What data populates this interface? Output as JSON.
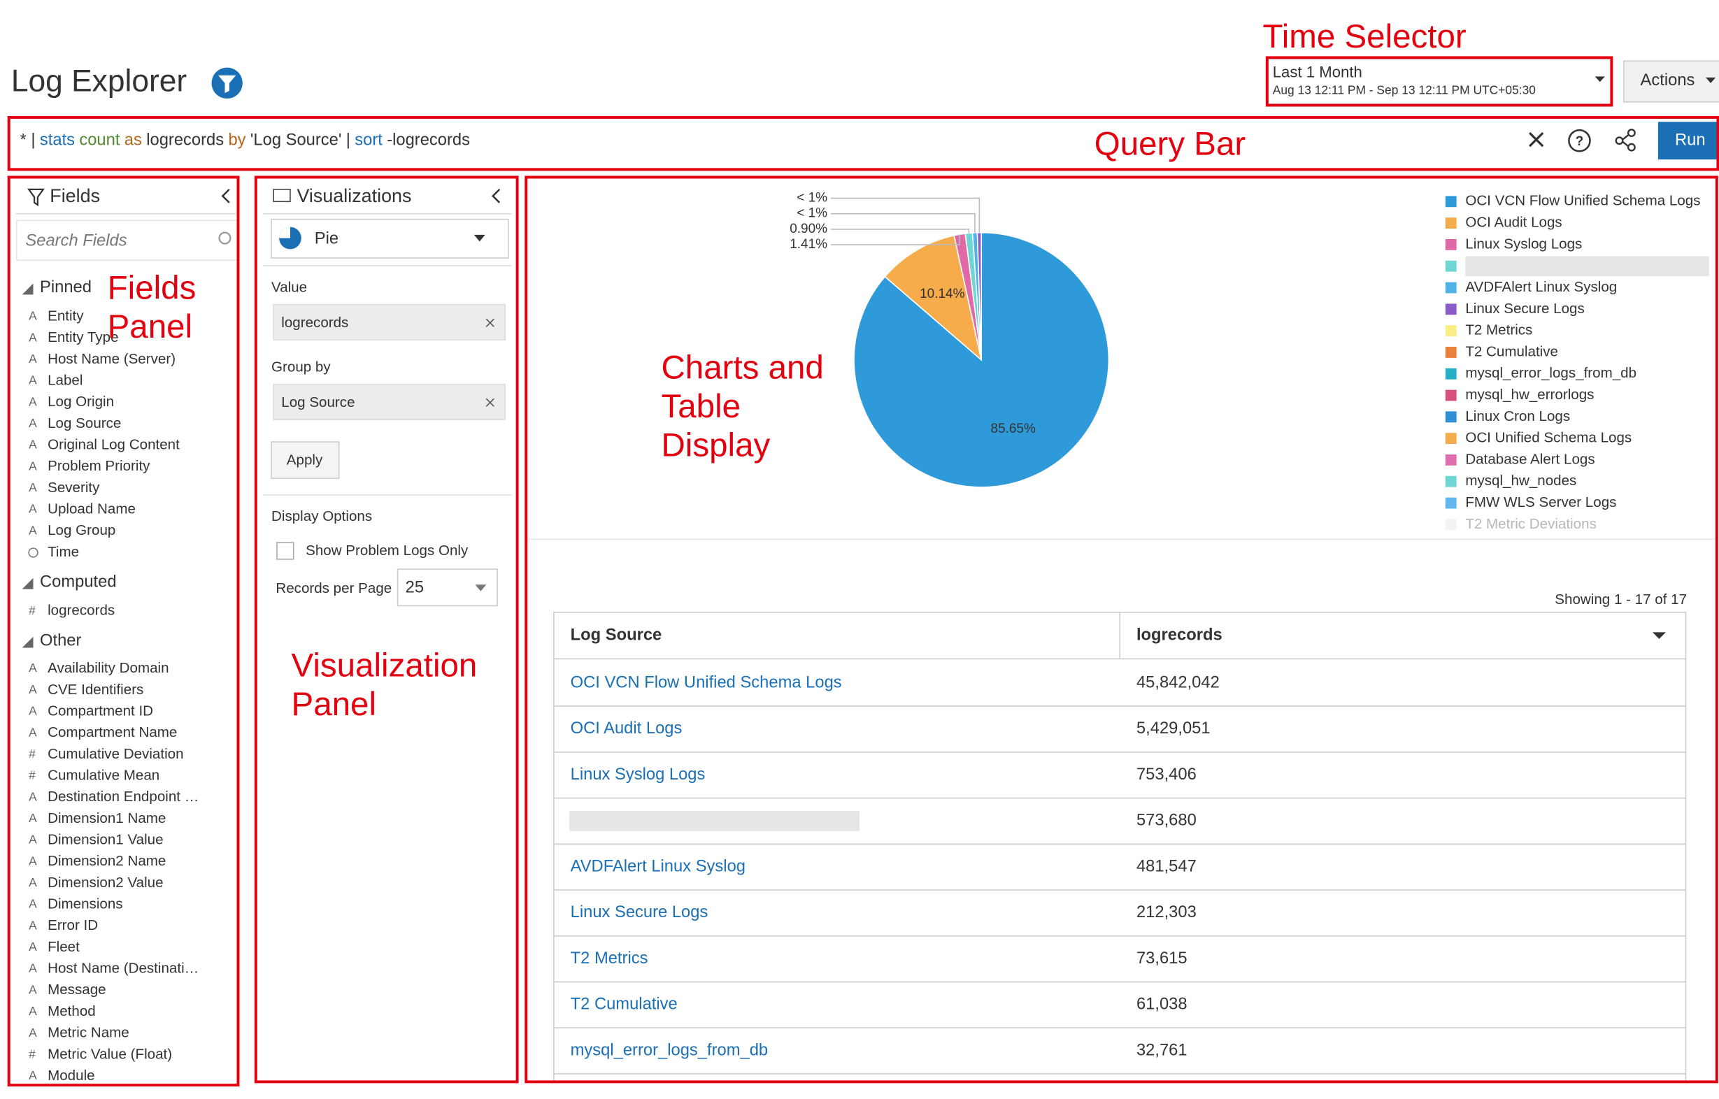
{
  "header": {
    "title": "Log Explorer",
    "time_selector": {
      "range": "Last 1 Month",
      "detail": "Aug 13 12:11 PM - Sep 13 12:11 PM UTC+05:30"
    },
    "actions": "Actions"
  },
  "annotations": {
    "time_selector": "Time Selector",
    "query_bar": "Query Bar",
    "fields_panel": [
      "Fields",
      "Panel"
    ],
    "visualization_panel": [
      "Visualization",
      "Panel"
    ],
    "charts_display": [
      "Charts and",
      "Table",
      "Display"
    ]
  },
  "query": {
    "tokens": [
      {
        "text": "* |",
        "color": "#333333"
      },
      {
        "text": "stats",
        "color": "#1a6fb5"
      },
      {
        "text": "count",
        "color": "#4f8a2b"
      },
      {
        "text": "as",
        "color": "#b5651d"
      },
      {
        "text": "logrecords",
        "color": "#333333"
      },
      {
        "text": "by",
        "color": "#b5651d"
      },
      {
        "text": "'Log Source'",
        "color": "#333333"
      },
      {
        "text": "|",
        "color": "#333333"
      },
      {
        "text": "sort",
        "color": "#1a6fb5"
      },
      {
        "text": "-logrecords",
        "color": "#333333"
      }
    ],
    "run": "Run"
  },
  "fields": {
    "title": "Fields",
    "search_placeholder": "Search Fields",
    "groups": [
      {
        "name": "Pinned",
        "items": [
          {
            "icon": "A",
            "name": "Entity"
          },
          {
            "icon": "A",
            "name": "Entity Type"
          },
          {
            "icon": "A",
            "name": "Host Name (Server)"
          },
          {
            "icon": "A",
            "name": "Label"
          },
          {
            "icon": "A",
            "name": "Log Origin"
          },
          {
            "icon": "A",
            "name": "Log Source"
          },
          {
            "icon": "A",
            "name": "Original Log Content"
          },
          {
            "icon": "A",
            "name": "Problem Priority"
          },
          {
            "icon": "A",
            "name": "Severity"
          },
          {
            "icon": "A",
            "name": "Upload Name"
          },
          {
            "icon": "A",
            "name": "Log Group"
          },
          {
            "icon": null,
            "name": "Time"
          }
        ]
      },
      {
        "name": "Computed",
        "items": [
          {
            "icon": "#",
            "name": "logrecords"
          }
        ]
      },
      {
        "name": "Other",
        "items": [
          {
            "icon": "A",
            "name": "Availability Domain"
          },
          {
            "icon": "A",
            "name": "CVE Identifiers"
          },
          {
            "icon": "A",
            "name": "Compartment ID"
          },
          {
            "icon": "A",
            "name": "Compartment Name"
          },
          {
            "icon": "#",
            "name": "Cumulative Deviation"
          },
          {
            "icon": "#",
            "name": "Cumulative Mean"
          },
          {
            "icon": "A",
            "name": "Destination Endpoint …"
          },
          {
            "icon": "A",
            "name": "Dimension1 Name"
          },
          {
            "icon": "A",
            "name": "Dimension1 Value"
          },
          {
            "icon": "A",
            "name": "Dimension2 Name"
          },
          {
            "icon": "A",
            "name": "Dimension2 Value"
          },
          {
            "icon": "A",
            "name": "Dimensions"
          },
          {
            "icon": "A",
            "name": "Error ID"
          },
          {
            "icon": "A",
            "name": "Fleet"
          },
          {
            "icon": "A",
            "name": "Host Name (Destinati…"
          },
          {
            "icon": "A",
            "name": "Message"
          },
          {
            "icon": "A",
            "name": "Method"
          },
          {
            "icon": "A",
            "name": "Metric Name"
          },
          {
            "icon": "#",
            "name": "Metric Value (Float)"
          },
          {
            "icon": "A",
            "name": "Module"
          }
        ]
      }
    ]
  },
  "visualizations": {
    "title": "Visualizations",
    "type": "Pie",
    "value_label": "Value",
    "value": "logrecords",
    "group_by_label": "Group by",
    "group_by": "Log Source",
    "apply": "Apply",
    "display_options": "Display Options",
    "show_problem_logs": "Show Problem Logs Only",
    "records_per_page_label": "Records per Page",
    "records_per_page": "25"
  },
  "pie": {
    "slices": [
      {
        "value": 85.65,
        "label": "85.65%"
      },
      {
        "value": 10.14,
        "label": "10.14%"
      },
      {
        "value": 1.41,
        "label": "1.41%"
      },
      {
        "value": 0.9,
        "label": "0.90%"
      },
      {
        "value": 0.6,
        "label": "< 1%"
      },
      {
        "value": 0.5,
        "label": "< 1%"
      }
    ],
    "legend": [
      {
        "name": "OCI VCN Flow Unified Schema Logs",
        "color": "#2e9ad9"
      },
      {
        "name": "OCI Audit Logs",
        "color": "#f7ac4b"
      },
      {
        "name": "Linux Syslog Logs",
        "color": "#e06aa7"
      },
      {
        "name": null,
        "color": "#6fd6d6"
      },
      {
        "name": "AVDFAlert Linux Syslog",
        "color": "#4fb3e8"
      },
      {
        "name": "Linux Secure Logs",
        "color": "#8a5cc7"
      },
      {
        "name": "T2 Metrics",
        "color": "#f9ed84"
      },
      {
        "name": "T2 Cumulative",
        "color": "#e8823b"
      },
      {
        "name": "mysql_error_logs_from_db",
        "color": "#27afc9"
      },
      {
        "name": "mysql_hw_errorlogs",
        "color": "#d94f7b"
      },
      {
        "name": "Linux Cron Logs",
        "color": "#2d8fd6"
      },
      {
        "name": "OCI Unified Schema Logs",
        "color": "#f7ac4b"
      },
      {
        "name": "Database Alert Logs",
        "color": "#e16fb0"
      },
      {
        "name": "mysql_hw_nodes",
        "color": "#6fd6d6"
      },
      {
        "name": "FMW WLS Server Logs",
        "color": "#62b8ee"
      },
      {
        "name": "T2 Metric Deviations",
        "color": "#dddddd"
      }
    ]
  },
  "table": {
    "showing": "Showing 1 - 17 of 17",
    "columns": [
      "Log Source",
      "logrecords"
    ],
    "rows": [
      [
        "OCI VCN Flow Unified Schema Logs",
        "45,842,042"
      ],
      [
        "OCI Audit Logs",
        "5,429,051"
      ],
      [
        "Linux Syslog Logs",
        "753,406"
      ],
      [
        null,
        "573,680"
      ],
      [
        "AVDFAlert Linux Syslog",
        "481,547"
      ],
      [
        "Linux Secure Logs",
        "212,303"
      ],
      [
        "T2 Metrics",
        "73,615"
      ],
      [
        "T2 Cumulative",
        "61,038"
      ],
      [
        "mysql_error_logs_from_db",
        "32,761"
      ]
    ]
  }
}
